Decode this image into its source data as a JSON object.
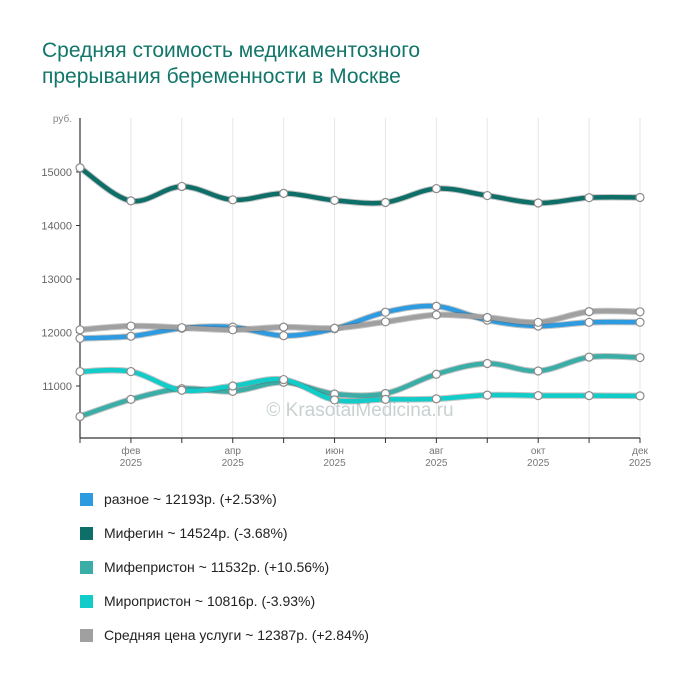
{
  "chart_data": {
    "type": "line",
    "title_lines": [
      "Средняя стоимость медикаментозного",
      "прерывания беременности в Москве"
    ],
    "watermark": "© KrasotaiMedicina.ru",
    "ylabel": "руб.",
    "ylim": [
      10000,
      16000
    ],
    "yticks": [
      11000,
      12000,
      13000,
      14000,
      15000
    ],
    "x": [
      0,
      1,
      2,
      3,
      4,
      5,
      6,
      7,
      8,
      9,
      10,
      11
    ],
    "xlim": [
      0,
      11
    ],
    "xticks": [
      {
        "x": 1,
        "month": "фев",
        "year": "2025"
      },
      {
        "x": 3,
        "month": "апр",
        "year": "2025"
      },
      {
        "x": 5,
        "month": "июн",
        "year": "2025"
      },
      {
        "x": 7,
        "month": "авг",
        "year": "2025"
      },
      {
        "x": 9,
        "month": "окт",
        "year": "2025"
      },
      {
        "x": 11,
        "month": "дек",
        "year": "2025"
      }
    ],
    "series": [
      {
        "name": "разное",
        "color": "#2e9be0",
        "values": [
          11890,
          11930,
          12080,
          12100,
          11940,
          12070,
          12380,
          12490,
          12230,
          12120,
          12190,
          12193
        ],
        "legend": "разное ~ 12193р. (+2.53%)"
      },
      {
        "name": "Мифегин",
        "color": "#0e6e68",
        "values": [
          15080,
          14460,
          14730,
          14480,
          14600,
          14470,
          14430,
          14690,
          14560,
          14420,
          14520,
          14524
        ],
        "legend": "Мифегин ~ 14524р. (-3.68%)"
      },
      {
        "name": "Мифепристон",
        "color": "#3aada7",
        "values": [
          10430,
          10750,
          10950,
          10900,
          11070,
          10850,
          10860,
          11220,
          11420,
          11280,
          11540,
          11532
        ],
        "legend": "Мифепристон ~ 11532р. (+10.56%)"
      },
      {
        "name": "Миропристон",
        "color": "#12ccc9",
        "values": [
          11270,
          11270,
          10920,
          11000,
          11120,
          10740,
          10750,
          10760,
          10830,
          10820,
          10820,
          10816
        ],
        "legend": "Миропристон ~ 10816р. (-3.93%)"
      },
      {
        "name": "Средняя цена услуги",
        "color": "#a0a0a0",
        "values": [
          12050,
          12120,
          12090,
          12050,
          12100,
          12080,
          12200,
          12330,
          12280,
          12190,
          12390,
          12387
        ],
        "legend": "Средняя цена услуги ~ 12387р. (+2.84%)"
      }
    ]
  }
}
